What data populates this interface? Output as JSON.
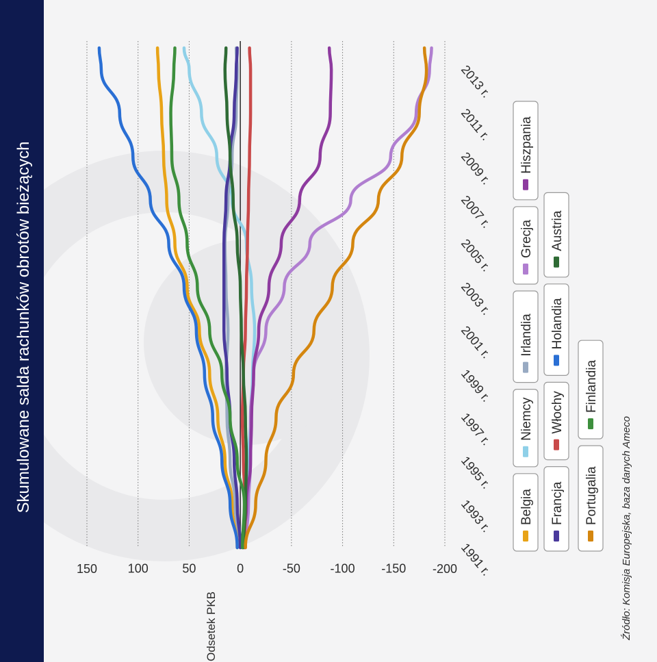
{
  "chart_data": {
    "type": "line",
    "title": "Skumulowane salda rachunków obrotów bieżących",
    "ylabel": "Odsetek PKB",
    "xlabel": "",
    "source": "Źródło: Komisja Europejska, baza danych Ameco",
    "ylim": [
      -200,
      150
    ],
    "yticks": [
      150,
      100,
      50,
      0,
      -50,
      -100,
      -150,
      -200
    ],
    "xlim": [
      1991,
      2014
    ],
    "xticks": [
      1991,
      1993,
      1995,
      1997,
      1999,
      2001,
      2003,
      2005,
      2007,
      2009,
      2011,
      2013
    ],
    "xtick_suffix": " r.",
    "grid": true,
    "legend_position": "right",
    "x": [
      1991,
      1993,
      1995,
      1997,
      1999,
      2001,
      2003,
      2005,
      2007,
      2009,
      2011,
      2013,
      2014
    ],
    "series": [
      {
        "name": "Belgia",
        "color": "#e8a317",
        "values": [
          3,
          8,
          15,
          22,
          30,
          40,
          52,
          64,
          72,
          75,
          77,
          80,
          81
        ]
      },
      {
        "name": "Niemcy",
        "color": "#8fd0e8",
        "values": [
          -3,
          -5,
          -8,
          -10,
          -12,
          -14,
          -11,
          -6,
          8,
          23,
          38,
          50,
          55
        ]
      },
      {
        "name": "Irlandia",
        "color": "#98aac2",
        "values": [
          0,
          5,
          10,
          13,
          14,
          12,
          14,
          15,
          12,
          8,
          4,
          3,
          4
        ]
      },
      {
        "name": "Grecja",
        "color": "#b07ed0",
        "values": [
          -5,
          -8,
          -10,
          -10,
          -13,
          -25,
          -43,
          -68,
          -108,
          -147,
          -172,
          -185,
          -187
        ]
      },
      {
        "name": "Hiszpania",
        "color": "#8e3b9f",
        "values": [
          -2,
          -6,
          -10,
          -11,
          -13,
          -18,
          -28,
          -40,
          -58,
          -78,
          -88,
          -89,
          -87
        ]
      },
      {
        "name": "Francja",
        "color": "#4a3a9c",
        "values": [
          0,
          3,
          6,
          10,
          13,
          16,
          16,
          16,
          14,
          10,
          6,
          4,
          3
        ]
      },
      {
        "name": "Włochy",
        "color": "#c94a4a",
        "values": [
          -4,
          -5,
          -3,
          -2,
          -3,
          -5,
          -6,
          -7,
          -8,
          -9,
          -10,
          -10,
          -9
        ]
      },
      {
        "name": "Holandia",
        "color": "#2a6fd4",
        "values": [
          3,
          10,
          18,
          27,
          35,
          43,
          55,
          70,
          88,
          105,
          118,
          136,
          138
        ]
      },
      {
        "name": "Austria",
        "color": "#2f6b35",
        "values": [
          -3,
          -5,
          -6,
          -5,
          -3,
          -1,
          0,
          3,
          7,
          10,
          13,
          15,
          14
        ]
      },
      {
        "name": "Portugalia",
        "color": "#d4860f",
        "values": [
          -5,
          -15,
          -25,
          -35,
          -52,
          -72,
          -90,
          -110,
          -135,
          -158,
          -175,
          -182,
          -180
        ]
      },
      {
        "name": "Finlandia",
        "color": "#3d8f3d",
        "values": [
          -2,
          -4,
          3,
          10,
          18,
          30,
          42,
          52,
          60,
          67,
          68,
          65,
          64
        ]
      }
    ]
  }
}
